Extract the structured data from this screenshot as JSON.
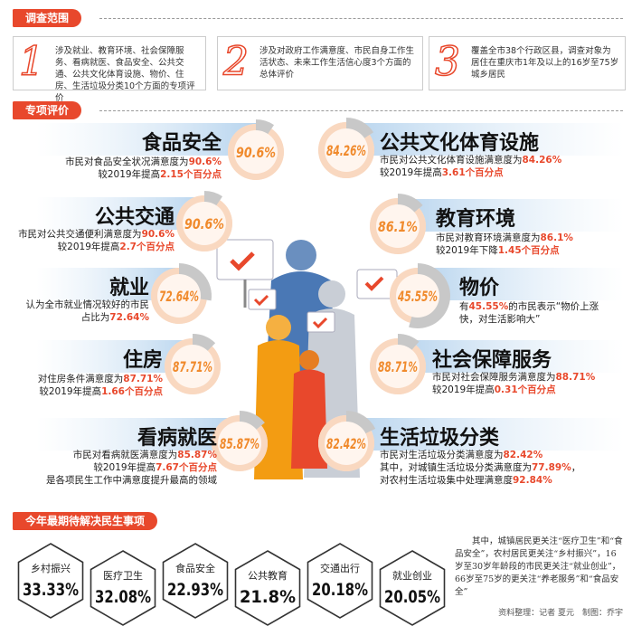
{
  "scope": {
    "title": "调查范围",
    "items": [
      {
        "number": "1",
        "text": "涉及就业、教育环境、社会保障服务、看病就医、食品安全、公共交通、公共文化体育设施、物价、住房、生活垃圾分类10个方面的专项评价"
      },
      {
        "number": "2",
        "text": "涉及对政府工作满意度、市民自身工作生活状态、未来工作生活信心度3个方面的总体评价"
      },
      {
        "number": "3",
        "text": "覆盖全市38个行政区县，调查对象为居住在重庆市1年及以上的16岁至75岁城乡居民"
      }
    ]
  },
  "evaluation": {
    "title": "专项评价",
    "items": [
      {
        "title": "食品安全",
        "value": 90.6,
        "value_label": "90.6%",
        "lines": [
          [
            "市民对食品安全状况满意度为",
            {
              "text": "90.6%",
              "color": "#e8482c"
            }
          ],
          [
            "较2019年提高",
            {
              "text": "2.15个百分点",
              "color": "#e8482c"
            }
          ]
        ]
      },
      {
        "title": "公共文化体育设施",
        "value": 84.26,
        "value_label": "84.26%",
        "lines": [
          [
            "市民对公共文化体育设施满意度为",
            {
              "text": "84.26%",
              "color": "#e8482c"
            }
          ],
          [
            "较2019年提高",
            {
              "text": "3.61个百分点",
              "color": "#e8482c"
            }
          ]
        ]
      },
      {
        "title": "公共交通",
        "value": 90.6,
        "value_label": "90.6%",
        "lines": [
          [
            "市民对公共交通便利满意度为",
            {
              "text": "90.6%",
              "color": "#e8482c"
            }
          ],
          [
            "较2019年提高",
            {
              "text": "2.7个百分点",
              "color": "#e8482c"
            }
          ]
        ]
      },
      {
        "title": "教育环境",
        "value": 86.1,
        "value_label": "86.1%",
        "lines": [
          [
            "市民对教育环境满意度为",
            {
              "text": "86.1%",
              "color": "#e8482c"
            }
          ],
          [
            "较2019年下降",
            {
              "text": "1.45个百分点",
              "color": "#e8482c"
            }
          ]
        ]
      },
      {
        "title": "就业",
        "value": 72.64,
        "value_label": "72.64%",
        "lines": [
          [
            "认为全市就业情况较好的市民"
          ],
          [
            "占比为",
            {
              "text": "72.64%",
              "color": "#e8482c"
            }
          ]
        ]
      },
      {
        "title": "物价",
        "value": 45.55,
        "value_label": "45.55%",
        "lines": [
          [
            "有",
            {
              "text": "45.55%",
              "color": "#e8482c"
            },
            "的市民表示“物价上涨"
          ],
          [
            "快，对生活影响大”"
          ]
        ]
      },
      {
        "title": "住房",
        "value": 87.71,
        "value_label": "87.71%",
        "lines": [
          [
            "对住房条件满意度为",
            {
              "text": "87.71%",
              "color": "#e8482c"
            }
          ],
          [
            "较2019年提高",
            {
              "text": "1.66个百分点",
              "color": "#e8482c"
            }
          ]
        ]
      },
      {
        "title": "社会保障服务",
        "value": 88.71,
        "value_label": "88.71%",
        "lines": [
          [
            "市民对社会保障服务满意度为",
            {
              "text": "88.71%",
              "color": "#e8482c"
            }
          ],
          [
            "较2019年提高",
            {
              "text": "0.31个百分点",
              "color": "#e8482c"
            }
          ]
        ]
      },
      {
        "title": "看病就医",
        "value": 85.87,
        "value_label": "85.87%",
        "lines": [
          [
            "市民对看病就医满意度为",
            {
              "text": "85.87%",
              "color": "#e8482c"
            }
          ],
          [
            "较2019年提高",
            {
              "text": "7.67个百分点",
              "color": "#e8482c"
            }
          ],
          [
            "是各项民生工作中满意度提升最高的领域"
          ]
        ]
      },
      {
        "title": "生活垃圾分类",
        "value": 82.42,
        "value_label": "82.42%",
        "lines": [
          [
            "市民对生活垃圾分类满意度为",
            {
              "text": "82.42%",
              "color": "#e8482c"
            }
          ],
          [
            "其中，对城镇生活垃圾分类满意度为",
            {
              "text": "77.89%",
              "color": "#e8482c"
            },
            "，"
          ],
          [
            "对农村生活垃圾集中处理满意度",
            {
              "text": "92.84%",
              "color": "#e8482c"
            }
          ]
        ]
      }
    ]
  },
  "priorities": {
    "title": "今年最期待解决民生事项",
    "items": [
      {
        "label": "乡村振兴",
        "value": "33.33%"
      },
      {
        "label": "医疗卫生",
        "value": "32.08%"
      },
      {
        "label": "食品安全",
        "value": "22.93%"
      },
      {
        "label": "公共教育",
        "value": "21.8%"
      },
      {
        "label": "交通出行",
        "value": "20.18%"
      },
      {
        "label": "就业创业",
        "value": "20.05%"
      }
    ],
    "note": "其中，城镇居民更关注“医疗卫生”和“食品安全”，农村居民更关注“乡村振兴”，16岁至30岁年龄段的市民更关注“就业创业”，66岁至75岁的更关注“养老服务”和“食品安全”",
    "credit": "资料整理：记者 夏元　制图：乔宇"
  }
}
